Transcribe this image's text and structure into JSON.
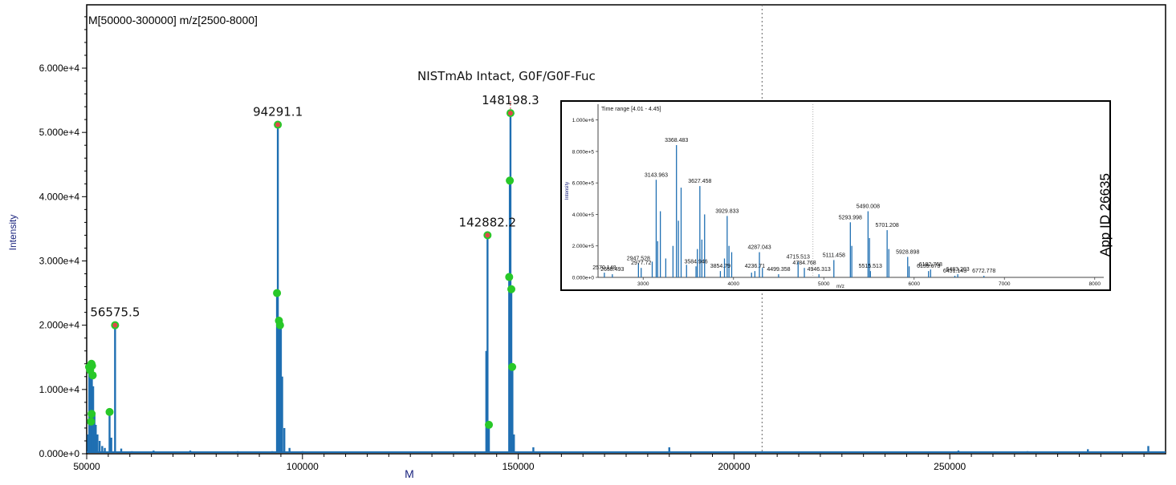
{
  "app_id": "App ID 26635",
  "chart_data": [
    {
      "type": "bar",
      "title": "M[50000-300000] m/z[2500-8000]",
      "annotation": "NISTmAb Intact, G0F/G0F-Fuc",
      "xlabel": "M",
      "ylabel": "Intensity",
      "xlim": [
        50000,
        300000
      ],
      "ylim": [
        0,
        70000
      ],
      "xticks": [
        50000,
        100000,
        150000,
        200000,
        250000
      ],
      "xtick_labels": [
        "50000",
        "100000",
        "150000",
        "200000",
        "250000"
      ],
      "yticks": [
        0,
        10000,
        20000,
        30000,
        40000,
        50000,
        60000
      ],
      "ytick_labels": [
        "0.000e+0",
        "1.000e+4",
        "2.000e+4",
        "3.000e+4",
        "4.000e+4",
        "5.000e+4",
        "6.000e+4"
      ],
      "grid": false,
      "color": "#1f6fb2",
      "marker_line_x": 206500,
      "peaks": [
        {
          "x": 50300,
          "y": 3000
        },
        {
          "x": 50600,
          "y": 13500
        },
        {
          "x": 50900,
          "y": 12500
        },
        {
          "x": 51200,
          "y": 14000
        },
        {
          "x": 51500,
          "y": 10500
        },
        {
          "x": 51800,
          "y": 6000
        },
        {
          "x": 52100,
          "y": 4500
        },
        {
          "x": 52500,
          "y": 3000
        },
        {
          "x": 53000,
          "y": 2000
        },
        {
          "x": 53600,
          "y": 1200
        },
        {
          "x": 54200,
          "y": 900
        },
        {
          "x": 55300,
          "y": 6500
        },
        {
          "x": 55700,
          "y": 2500
        },
        {
          "x": 56575.5,
          "y": 20000
        },
        {
          "x": 58000,
          "y": 800
        },
        {
          "x": 60500,
          "y": 400
        },
        {
          "x": 65500,
          "y": 500
        },
        {
          "x": 69000,
          "y": 300
        },
        {
          "x": 74000,
          "y": 500
        },
        {
          "x": 78000,
          "y": 300
        },
        {
          "x": 85000,
          "y": 400
        },
        {
          "x": 88000,
          "y": 300
        },
        {
          "x": 93000,
          "y": 400
        },
        {
          "x": 94100,
          "y": 25000
        },
        {
          "x": 94291.1,
          "y": 51200
        },
        {
          "x": 94500,
          "y": 20700
        },
        {
          "x": 94750,
          "y": 20500
        },
        {
          "x": 95000,
          "y": 20000
        },
        {
          "x": 95300,
          "y": 12000
        },
        {
          "x": 95800,
          "y": 4000
        },
        {
          "x": 97000,
          "y": 900
        },
        {
          "x": 100000,
          "y": 400
        },
        {
          "x": 110000,
          "y": 300
        },
        {
          "x": 125000,
          "y": 300
        },
        {
          "x": 135000,
          "y": 300
        },
        {
          "x": 142600,
          "y": 16000
        },
        {
          "x": 142882.2,
          "y": 34000
        },
        {
          "x": 143200,
          "y": 4500
        },
        {
          "x": 147900,
          "y": 27500
        },
        {
          "x": 148050,
          "y": 42500
        },
        {
          "x": 148198.3,
          "y": 53000
        },
        {
          "x": 148400,
          "y": 25500
        },
        {
          "x": 148650,
          "y": 13500
        },
        {
          "x": 149000,
          "y": 3000
        },
        {
          "x": 153500,
          "y": 1000
        },
        {
          "x": 165000,
          "y": 300
        },
        {
          "x": 175000,
          "y": 300
        },
        {
          "x": 185000,
          "y": 1000
        },
        {
          "x": 200000,
          "y": 300
        },
        {
          "x": 215000,
          "y": 300
        },
        {
          "x": 230000,
          "y": 300
        },
        {
          "x": 252000,
          "y": 500
        },
        {
          "x": 268000,
          "y": 400
        },
        {
          "x": 282000,
          "y": 700
        },
        {
          "x": 296000,
          "y": 1200
        }
      ],
      "dots": [
        {
          "x": 50550,
          "y": 13500
        },
        {
          "x": 50800,
          "y": 13000
        },
        {
          "x": 51100,
          "y": 14000
        },
        {
          "x": 51250,
          "y": 13700
        },
        {
          "x": 51400,
          "y": 12200
        },
        {
          "x": 51150,
          "y": 6200
        },
        {
          "x": 51000,
          "y": 5000
        },
        {
          "x": 55300,
          "y": 6500
        },
        {
          "x": 56575.5,
          "y": 20000
        },
        {
          "x": 94100,
          "y": 25000
        },
        {
          "x": 94291.1,
          "y": 51200
        },
        {
          "x": 94550,
          "y": 20700
        },
        {
          "x": 94800,
          "y": 20000
        },
        {
          "x": 142882.2,
          "y": 34000
        },
        {
          "x": 143200,
          "y": 4500
        },
        {
          "x": 147900,
          "y": 27500
        },
        {
          "x": 148050,
          "y": 42500
        },
        {
          "x": 148198.3,
          "y": 53000
        },
        {
          "x": 148400,
          "y": 25600
        },
        {
          "x": 148600,
          "y": 13500
        }
      ],
      "labeled_peaks": [
        {
          "x": 56575.5,
          "y": 20000,
          "label": "56575.5"
        },
        {
          "x": 94291.1,
          "y": 51200,
          "label": "94291.1"
        },
        {
          "x": 142882.2,
          "y": 34000,
          "label": "142882.2"
        },
        {
          "x": 148198.3,
          "y": 53000,
          "label": "148198.3"
        }
      ]
    },
    {
      "type": "bar",
      "title": "Time range [4.01 - 4.45]",
      "xlabel": "m/z",
      "ylabel": "Intensity",
      "xlim": [
        2500,
        8100
      ],
      "ylim": [
        0,
        1100000
      ],
      "xticks": [
        3000,
        4000,
        5000,
        6000,
        7000,
        8000
      ],
      "xtick_labels": [
        "3000",
        "4000",
        "5000",
        "6000",
        "7000",
        "8000"
      ],
      "yticks": [
        0,
        200000,
        400000,
        600000,
        800000,
        1000000
      ],
      "ytick_labels": [
        "0.000e+0",
        "2.000e+5",
        "4.000e+5",
        "6.000e+5",
        "8.000e+5",
        "1.000e+6"
      ],
      "grid": false,
      "color": "#1f6fb2",
      "marker_line_x": 4880,
      "peaks": [
        {
          "x": 2570.148,
          "y": 30000
        },
        {
          "x": 2658.493,
          "y": 20000
        },
        {
          "x": 2947.528,
          "y": 90000
        },
        {
          "x": 2977.72,
          "y": 60000
        },
        {
          "x": 3100,
          "y": 100000
        },
        {
          "x": 3143.963,
          "y": 620000
        },
        {
          "x": 3160,
          "y": 230000
        },
        {
          "x": 3190,
          "y": 420000
        },
        {
          "x": 3250,
          "y": 120000
        },
        {
          "x": 3330,
          "y": 200000
        },
        {
          "x": 3368.483,
          "y": 840000
        },
        {
          "x": 3390,
          "y": 360000
        },
        {
          "x": 3420,
          "y": 570000
        },
        {
          "x": 3480,
          "y": 80000
        },
        {
          "x": 3584.946,
          "y": 70000
        },
        {
          "x": 3600,
          "y": 180000
        },
        {
          "x": 3627.458,
          "y": 580000
        },
        {
          "x": 3650,
          "y": 240000
        },
        {
          "x": 3680,
          "y": 400000
        },
        {
          "x": 3854.79,
          "y": 40000
        },
        {
          "x": 3900,
          "y": 120000
        },
        {
          "x": 3929.833,
          "y": 390000
        },
        {
          "x": 3950,
          "y": 200000
        },
        {
          "x": 3980,
          "y": 160000
        },
        {
          "x": 4200,
          "y": 30000
        },
        {
          "x": 4236.71,
          "y": 40000
        },
        {
          "x": 4287.043,
          "y": 160000
        },
        {
          "x": 4320,
          "y": 60000
        },
        {
          "x": 4499.358,
          "y": 20000
        },
        {
          "x": 4715.513,
          "y": 100000
        },
        {
          "x": 4784.768,
          "y": 60000
        },
        {
          "x": 4946.313,
          "y": 20000
        },
        {
          "x": 5111.458,
          "y": 110000
        },
        {
          "x": 5293.998,
          "y": 350000
        },
        {
          "x": 5310,
          "y": 200000
        },
        {
          "x": 5490.008,
          "y": 420000
        },
        {
          "x": 5506,
          "y": 250000
        },
        {
          "x": 5515.513,
          "y": 40000
        },
        {
          "x": 5701.208,
          "y": 300000
        },
        {
          "x": 5720,
          "y": 180000
        },
        {
          "x": 5928.898,
          "y": 130000
        },
        {
          "x": 5945,
          "y": 70000
        },
        {
          "x": 6159.673,
          "y": 40000
        },
        {
          "x": 6182.768,
          "y": 50000
        },
        {
          "x": 6451.143,
          "y": 10000
        },
        {
          "x": 6483.203,
          "y": 20000
        },
        {
          "x": 6772.778,
          "y": 10000
        }
      ],
      "labeled_peaks": [
        {
          "x": 2570.148,
          "y": 30000,
          "label": "2570.148"
        },
        {
          "x": 2658.493,
          "y": 20000,
          "label": "2658.493"
        },
        {
          "x": 2947.528,
          "y": 90000,
          "label": "2947.528"
        },
        {
          "x": 2977.72,
          "y": 60000,
          "label": "2977.72"
        },
        {
          "x": 3143.963,
          "y": 620000,
          "label": "3143.963"
        },
        {
          "x": 3368.483,
          "y": 840000,
          "label": "3368.483"
        },
        {
          "x": 3584.946,
          "y": 70000,
          "label": "3584.946"
        },
        {
          "x": 3627.458,
          "y": 580000,
          "label": "3627.458"
        },
        {
          "x": 3854.79,
          "y": 40000,
          "label": "3854.79"
        },
        {
          "x": 3929.833,
          "y": 390000,
          "label": "3929.833"
        },
        {
          "x": 4236.71,
          "y": 40000,
          "label": "4236.71"
        },
        {
          "x": 4287.043,
          "y": 160000,
          "label": "4287.043"
        },
        {
          "x": 4499.358,
          "y": 20000,
          "label": "4499.358"
        },
        {
          "x": 4715.513,
          "y": 100000,
          "label": "4715.513"
        },
        {
          "x": 4784.768,
          "y": 60000,
          "label": "4784.768"
        },
        {
          "x": 4946.313,
          "y": 20000,
          "label": "4946.313"
        },
        {
          "x": 5111.458,
          "y": 110000,
          "label": "5111.458"
        },
        {
          "x": 5293.998,
          "y": 350000,
          "label": "5293.998"
        },
        {
          "x": 5490.008,
          "y": 420000,
          "label": "5490.008"
        },
        {
          "x": 5515.513,
          "y": 40000,
          "label": "5515.513"
        },
        {
          "x": 5701.208,
          "y": 300000,
          "label": "5701.208"
        },
        {
          "x": 5928.898,
          "y": 130000,
          "label": "5928.898"
        },
        {
          "x": 6159.673,
          "y": 40000,
          "label": "6159.673"
        },
        {
          "x": 6182.768,
          "y": 50000,
          "label": "6182.768"
        },
        {
          "x": 6451.143,
          "y": 10000,
          "label": "6451.143"
        },
        {
          "x": 6483.203,
          "y": 20000,
          "label": "6483.203"
        },
        {
          "x": 6772.778,
          "y": 10000,
          "label": "6772.778"
        }
      ]
    }
  ]
}
